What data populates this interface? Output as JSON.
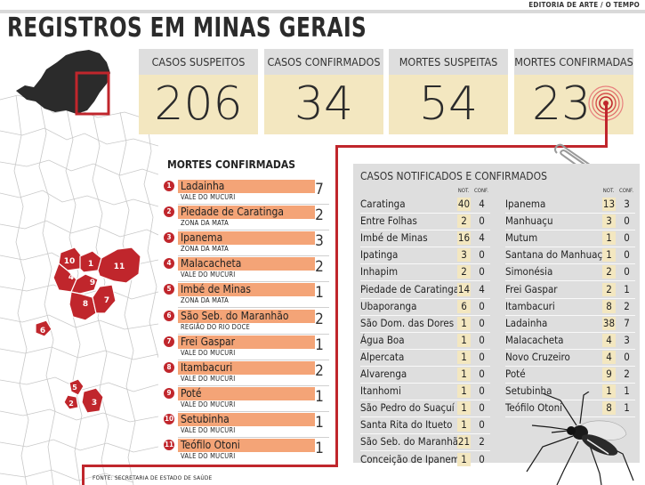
{
  "header": {
    "credit": "EDITORIA DE ARTE / O TEMPO",
    "title": "REGISTROS EM MINAS GERAIS"
  },
  "stats": [
    {
      "label": "CASOS SUSPEITOS",
      "value": "206"
    },
    {
      "label": "CASOS CONFIRMADOS",
      "value": "34"
    },
    {
      "label": "MORTES SUSPEITAS",
      "value": "54"
    },
    {
      "label": "MORTES CONFIRMADAS",
      "value": "23"
    }
  ],
  "map": {
    "labels": [
      "10",
      "1",
      "4",
      "9",
      "11",
      "6",
      "8",
      "7",
      "5",
      "2",
      "3"
    ],
    "highlight_color": "#c0262c"
  },
  "deaths": {
    "title": "MORTES CONFIRMADAS",
    "items": [
      {
        "num": "1",
        "city": "Ladainha",
        "region": "VALE DO MUCURI",
        "count": "7"
      },
      {
        "num": "2",
        "city": "Piedade de Caratinga",
        "region": "ZONA DA MATA",
        "count": "2"
      },
      {
        "num": "3",
        "city": "Ipanema",
        "region": "ZONA DA MATA",
        "count": "3"
      },
      {
        "num": "4",
        "city": "Malacacheta",
        "region": "VALE DO MUCURI",
        "count": "2"
      },
      {
        "num": "5",
        "city": "Imbé de Minas",
        "region": "ZONA DA MATA",
        "count": "1"
      },
      {
        "num": "6",
        "city": "São Seb. do Maranhão",
        "region": "REGIÃO DO RIO DOCE",
        "count": "2"
      },
      {
        "num": "7",
        "city": "Frei Gaspar",
        "region": "VALE DO MUCURI",
        "count": "1"
      },
      {
        "num": "8",
        "city": "Itambacuri",
        "region": "VALE DO MUCURI",
        "count": "2"
      },
      {
        "num": "9",
        "city": "Poté",
        "region": "VALE DO MUCURI",
        "count": "1"
      },
      {
        "num": "10",
        "city": "Setubinha",
        "region": "VALE DO MUCURI",
        "count": "1"
      },
      {
        "num": "11",
        "city": "Teófilo Otoni",
        "region": "VALE DO MUCURI",
        "count": "1"
      }
    ]
  },
  "source": "FONTE: SECRETARIA DE ESTADO DE SAÚDE",
  "notified": {
    "title": "CASOS NOTIFICADOS E CONFIRMADOS",
    "col_not": "NOT.",
    "col_conf": "CONF.",
    "left": [
      {
        "city": "Caratinga",
        "not": "40",
        "conf": "4"
      },
      {
        "city": "Entre Folhas",
        "not": "2",
        "conf": "0"
      },
      {
        "city": "Imbé de Minas",
        "not": "16",
        "conf": "4"
      },
      {
        "city": "Ipatinga",
        "not": "3",
        "conf": "0"
      },
      {
        "city": "Inhapim",
        "not": "2",
        "conf": "0"
      },
      {
        "city": "Piedade de Caratinga",
        "not": "14",
        "conf": "4"
      },
      {
        "city": "Ubaporanga",
        "not": "6",
        "conf": "0"
      },
      {
        "city": "São Dom. das Dores",
        "not": "1",
        "conf": "0"
      },
      {
        "city": "Água Boa",
        "not": "1",
        "conf": "0"
      },
      {
        "city": "Alpercata",
        "not": "1",
        "conf": "0"
      },
      {
        "city": "Alvarenga",
        "not": "1",
        "conf": "0"
      },
      {
        "city": "Itanhomi",
        "not": "1",
        "conf": "0"
      },
      {
        "city": "São Pedro do Suaçuí",
        "not": "1",
        "conf": "0"
      },
      {
        "city": "Santa Rita do Itueto",
        "not": "1",
        "conf": "0"
      },
      {
        "city": "São Seb. do Maranhão",
        "not": "21",
        "conf": "2"
      },
      {
        "city": "Conceição de Ipanema",
        "not": "1",
        "conf": "0"
      }
    ],
    "right": [
      {
        "city": "Ipanema",
        "not": "13",
        "conf": "3"
      },
      {
        "city": "Manhuaçu",
        "not": "3",
        "conf": "0"
      },
      {
        "city": "Mutum",
        "not": "1",
        "conf": "0"
      },
      {
        "city": "Santana do Manhuaçu",
        "not": "1",
        "conf": "0"
      },
      {
        "city": "Simonésia",
        "not": "2",
        "conf": "0"
      },
      {
        "city": "Frei Gaspar",
        "not": "2",
        "conf": "1"
      },
      {
        "city": "Itambacuri",
        "not": "8",
        "conf": "2"
      },
      {
        "city": "Ladainha",
        "not": "38",
        "conf": "7"
      },
      {
        "city": "Malacacheta",
        "not": "4",
        "conf": "3"
      },
      {
        "city": "Novo Cruzeiro",
        "not": "4",
        "conf": "0"
      },
      {
        "city": "Poté",
        "not": "9",
        "conf": "2"
      },
      {
        "city": "Setubinha",
        "not": "1",
        "conf": "1"
      },
      {
        "city": "Teófilo Otoni",
        "not": "8",
        "conf": "1"
      }
    ]
  },
  "colors": {
    "accent_red": "#c0262c",
    "stat_value_bg": "#f3e7c0",
    "stat_label_bg": "#dedede",
    "death_name_bg": "#f4a477",
    "panel_bg": "#dedede"
  },
  "icons": [
    "target-icon",
    "paperclip-icon",
    "mosquito-icon",
    "minas-gerais-map-icon"
  ]
}
